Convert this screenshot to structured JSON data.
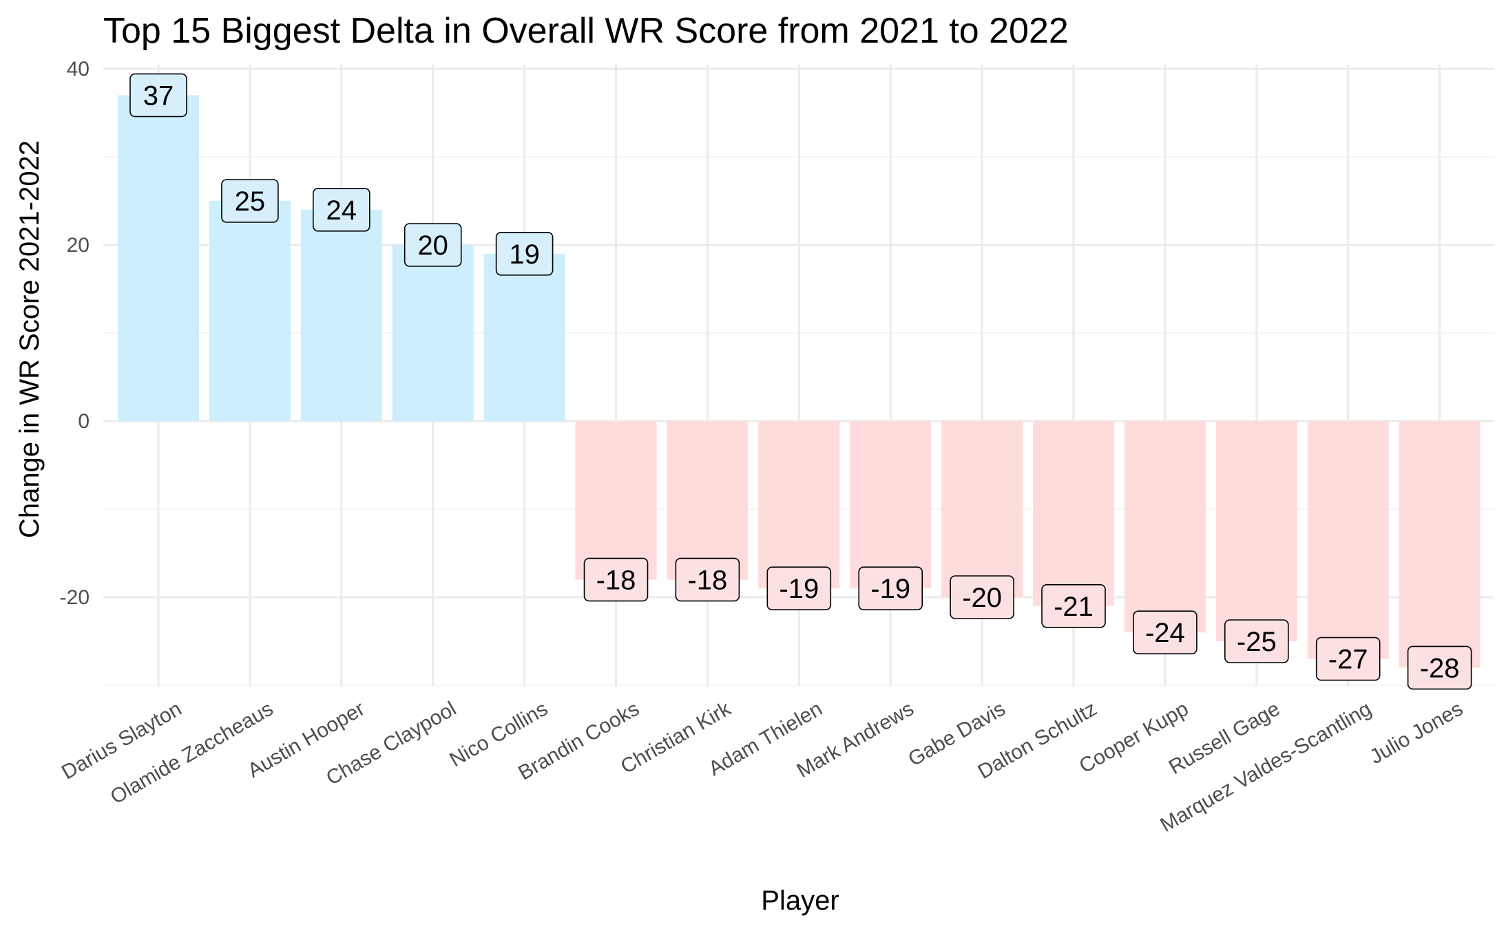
{
  "chart_data": {
    "type": "bar",
    "title": "Top 15 Biggest Delta in Overall WR Score from 2021 to 2022",
    "xlabel": "Player",
    "ylabel": "Change in WR Score 2021-2022",
    "categories": [
      "Darius Slayton",
      "Olamide Zaccheaus",
      "Austin Hooper",
      "Chase Claypool",
      "Nico Collins",
      "Brandin Cooks",
      "Christian Kirk",
      "Adam Thielen",
      "Mark Andrews",
      "Gabe Davis",
      "Dalton Schultz",
      "Cooper Kupp",
      "Russell Gage",
      "Marquez Valdes-Scantling",
      "Julio Jones"
    ],
    "values": [
      37,
      25,
      24,
      20,
      19,
      -18,
      -18,
      -19,
      -19,
      -20,
      -21,
      -24,
      -25,
      -27,
      -28
    ],
    "labels": [
      "37",
      "25",
      "24",
      "20",
      "19",
      "-18",
      "-18",
      "-19",
      "-19",
      "-20",
      "-21",
      "-24",
      "-25",
      "-27",
      "-28"
    ],
    "ylim": [
      -30,
      40
    ],
    "yticks": [
      -20,
      0,
      20,
      40
    ],
    "ytick_labels": [
      "-20",
      "0",
      "20",
      "40"
    ],
    "grid": true,
    "legend": "none",
    "colors": {
      "positive_fill": "#cdeefd",
      "negative_fill": "#ffdcdc",
      "positive_label_fill": "#d6effb",
      "negative_label_fill": "#fbe1e1",
      "grid": "#ebebeb",
      "tick_text": "#4d4d4d"
    }
  }
}
